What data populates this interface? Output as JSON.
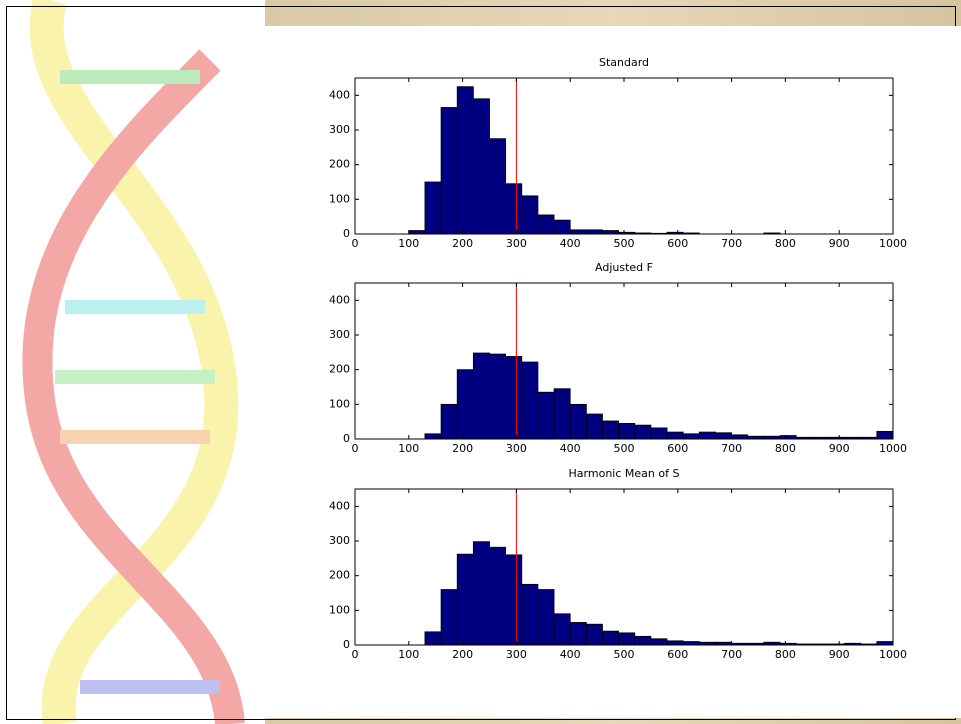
{
  "chart_data": [
    {
      "type": "histogram",
      "title": "Standard",
      "bins": [
        100,
        130,
        160,
        190,
        220,
        250,
        280,
        310,
        340,
        370,
        400,
        430,
        460,
        490,
        520,
        550,
        580,
        610,
        640,
        670,
        700,
        730,
        760,
        790,
        820,
        850,
        880,
        910,
        940,
        970,
        1000
      ],
      "values": [
        10,
        150,
        365,
        425,
        390,
        275,
        145,
        110,
        55,
        40,
        12,
        12,
        10,
        5,
        3,
        2,
        5,
        3,
        0,
        0,
        0,
        0,
        3,
        0,
        0,
        0,
        0,
        0,
        0,
        0
      ],
      "color": "#000080",
      "xlim": [
        0,
        1000
      ],
      "ylim": [
        0,
        450
      ],
      "xticks": [
        0,
        100,
        200,
        300,
        400,
        500,
        600,
        700,
        800,
        900,
        1000
      ],
      "yticks": [
        0,
        100,
        200,
        300,
        400
      ],
      "vline": 300,
      "vline_color": "#ff0000"
    },
    {
      "type": "histogram",
      "title": "Adjusted F",
      "bins": [
        100,
        130,
        160,
        190,
        220,
        250,
        280,
        310,
        340,
        370,
        400,
        430,
        460,
        490,
        520,
        550,
        580,
        610,
        640,
        670,
        700,
        730,
        760,
        790,
        820,
        850,
        880,
        910,
        940,
        970,
        1000
      ],
      "values": [
        0,
        15,
        100,
        200,
        248,
        245,
        238,
        222,
        135,
        145,
        100,
        72,
        52,
        45,
        40,
        32,
        20,
        15,
        20,
        18,
        12,
        8,
        8,
        10,
        5,
        5,
        5,
        5,
        5,
        22
      ],
      "color": "#000080",
      "xlim": [
        0,
        1000
      ],
      "ylim": [
        0,
        450
      ],
      "xticks": [
        0,
        100,
        200,
        300,
        400,
        500,
        600,
        700,
        800,
        900,
        1000
      ],
      "yticks": [
        0,
        100,
        200,
        300,
        400
      ],
      "vline": 300,
      "vline_color": "#ff0000"
    },
    {
      "type": "histogram",
      "title": "Harmonic Mean of S",
      "bins": [
        100,
        130,
        160,
        190,
        220,
        250,
        280,
        310,
        340,
        370,
        400,
        430,
        460,
        490,
        520,
        550,
        580,
        610,
        640,
        670,
        700,
        730,
        760,
        790,
        820,
        850,
        880,
        910,
        940,
        970,
        1000
      ],
      "values": [
        0,
        38,
        160,
        262,
        298,
        282,
        260,
        175,
        160,
        90,
        65,
        60,
        40,
        35,
        25,
        18,
        12,
        10,
        8,
        8,
        5,
        5,
        8,
        5,
        3,
        3,
        3,
        5,
        3,
        10
      ],
      "color": "#000080",
      "xlim": [
        0,
        1000
      ],
      "ylim": [
        0,
        450
      ],
      "xticks": [
        0,
        100,
        200,
        300,
        400,
        500,
        600,
        700,
        800,
        900,
        1000
      ],
      "yticks": [
        0,
        100,
        200,
        300,
        400
      ],
      "vline": 300,
      "vline_color": "#ff0000"
    }
  ]
}
